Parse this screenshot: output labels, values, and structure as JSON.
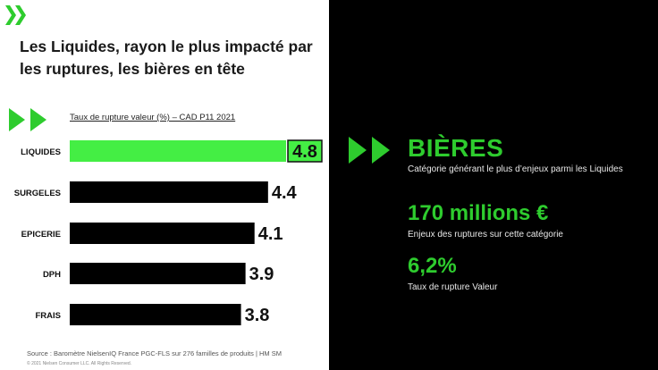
{
  "title": "Les Liquides, rayon le plus impacté par les ruptures, les bières en tête",
  "chart_caption": "Taux de rupture valeur (%) – CAD P11 2021",
  "source": "Source : Baromètre NielsenIQ France PGC-FLS sur 276 familles de produits | HM SM",
  "copyright": "© 2021 Nielsen Consumer LLC. All Rights Reserved.",
  "highlight": {
    "category": "BIÈRES",
    "category_desc": "Catégorie générant le plus d’enjeux parmi les Liquides",
    "stat1_value": "170 millions €",
    "stat1_desc": "Enjeux des ruptures sur cette catégorie",
    "stat2_value": "6,2%",
    "stat2_desc": "Taux de rupture Valeur"
  },
  "colors": {
    "accent_green": "#2ecc2e",
    "bar_highlight": "#44ee44",
    "bar_default": "#000000"
  },
  "chart_data": {
    "type": "bar",
    "orientation": "horizontal",
    "categories": [
      "LIQUIDES",
      "SURGELES",
      "EPICERIE",
      "DPH",
      "FRAIS"
    ],
    "values": [
      4.8,
      4.4,
      4.1,
      3.9,
      3.8
    ],
    "value_labels": [
      "4.8",
      "4.4",
      "4.1",
      "3.9",
      "3.8"
    ],
    "highlighted": "LIQUIDES",
    "title": "Taux de rupture valeur (%) – CAD P11 2021",
    "xlabel": "",
    "ylabel": "",
    "grid": false,
    "legend": "none"
  }
}
